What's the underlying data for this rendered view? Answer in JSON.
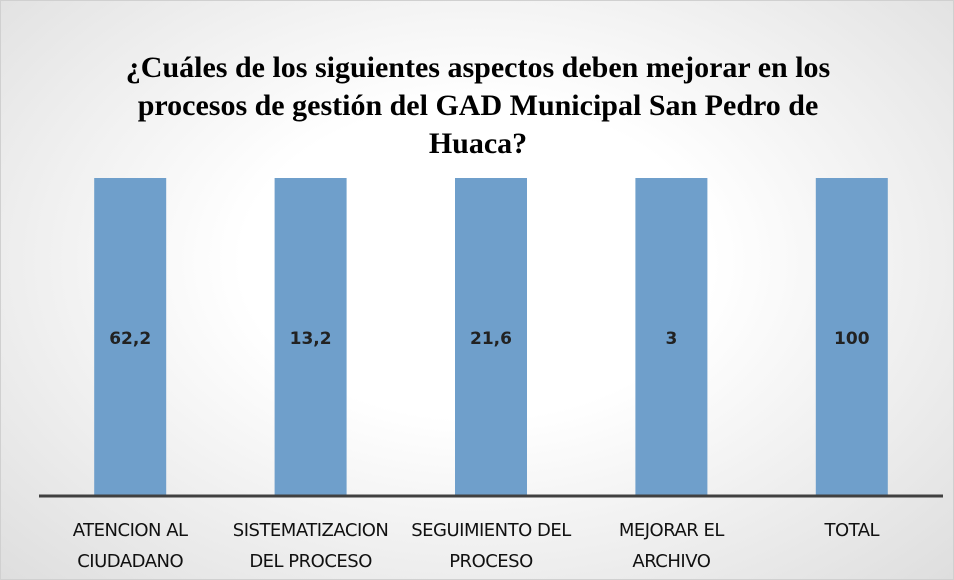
{
  "chart_data": {
    "type": "bar",
    "stacking": "percent",
    "title": "¿Cuáles de los siguientes aspectos deben mejorar en los procesos de gestión del GAD Municipal San Pedro de Huaca?",
    "categories": [
      "ATENCION AL CIUDADANO",
      "SISTEMATIZACION DEL PROCESO",
      "SEGUIMIENTO DEL PROCESO",
      "MEJORAR EL ARCHIVO",
      "TOTAL"
    ],
    "values": [
      62.2,
      13.2,
      21.6,
      3,
      100
    ],
    "value_labels": [
      "62,2",
      "13,2",
      "21,6",
      "3",
      "100"
    ],
    "color": "#6f9fcb"
  }
}
